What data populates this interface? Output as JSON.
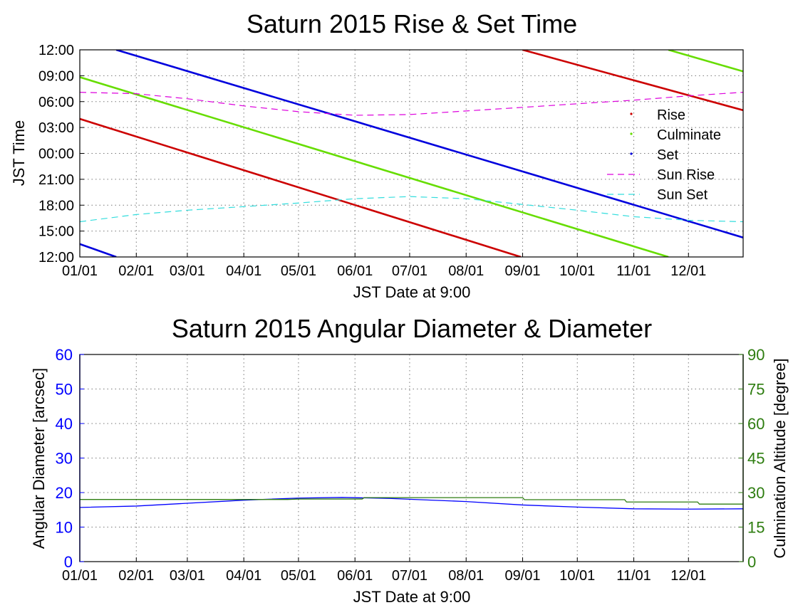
{
  "chart_data": [
    {
      "type": "scatter",
      "title": "Saturn 2015 Rise & Set Time",
      "xlabel": "JST Date at 9:00",
      "ylabel": "JST Time",
      "x_tick_labels": [
        "01/01",
        "02/01",
        "03/01",
        "04/01",
        "05/01",
        "06/01",
        "07/01",
        "08/01",
        "09/01",
        "10/01",
        "11/01",
        "12/01"
      ],
      "y_tick_labels": [
        "12:00",
        "15:00",
        "18:00",
        "21:00",
        "00:00",
        "03:00",
        "06:00",
        "09:00",
        "12:00"
      ],
      "grid": true,
      "legend": "right",
      "series": [
        {
          "name": "Rise",
          "color": "#cc0000",
          "style": "dots",
          "segments": [
            {
              "x": [
                "2015-01-01",
                "2015-08-31"
              ],
              "y": [
                "04:00",
                "12:00"
              ]
            },
            {
              "x": [
                "2015-09-01",
                "2015-12-31"
              ],
              "y": [
                "12:00",
                "05:00"
              ]
            }
          ]
        },
        {
          "name": "Culminate",
          "color": "#66dd00",
          "style": "dots",
          "segments": [
            {
              "x": [
                "2015-01-01",
                "2015-11-20"
              ],
              "y": [
                "08:50",
                "12:00"
              ]
            },
            {
              "x": [
                "2015-11-20",
                "2015-12-31"
              ],
              "y": [
                "12:00",
                "09:30"
              ]
            }
          ]
        },
        {
          "name": "Set",
          "color": "#0000dd",
          "style": "dots",
          "segments": [
            {
              "x": [
                "2015-01-01",
                "2015-01-21"
              ],
              "y": [
                "13:30",
                "12:00"
              ]
            },
            {
              "x": [
                "2015-01-21",
                "2015-12-31"
              ],
              "y": [
                "12:00",
                "14:15"
              ]
            }
          ]
        },
        {
          "name": "Sun Rise",
          "color": "#dd00dd",
          "style": "dashed",
          "points": [
            {
              "x": "2015-01-01",
              "y": "07:05"
            },
            {
              "x": "2015-02-01",
              "y": "06:55"
            },
            {
              "x": "2015-03-01",
              "y": "06:20"
            },
            {
              "x": "2015-04-01",
              "y": "05:30"
            },
            {
              "x": "2015-05-01",
              "y": "04:50"
            },
            {
              "x": "2015-06-01",
              "y": "04:25"
            },
            {
              "x": "2015-07-01",
              "y": "04:30"
            },
            {
              "x": "2015-08-01",
              "y": "04:55"
            },
            {
              "x": "2015-09-01",
              "y": "05:20"
            },
            {
              "x": "2015-10-01",
              "y": "05:45"
            },
            {
              "x": "2015-11-01",
              "y": "06:10"
            },
            {
              "x": "2015-12-01",
              "y": "06:40"
            },
            {
              "x": "2015-12-31",
              "y": "07:05"
            }
          ]
        },
        {
          "name": "Sun Set",
          "color": "#33dddd",
          "style": "dashed",
          "points": [
            {
              "x": "2015-01-01",
              "y": "16:05"
            },
            {
              "x": "2015-02-01",
              "y": "16:55"
            },
            {
              "x": "2015-03-01",
              "y": "17:25"
            },
            {
              "x": "2015-04-01",
              "y": "17:50"
            },
            {
              "x": "2015-05-01",
              "y": "18:15"
            },
            {
              "x": "2015-06-01",
              "y": "18:45"
            },
            {
              "x": "2015-07-01",
              "y": "19:00"
            },
            {
              "x": "2015-08-01",
              "y": "18:45"
            },
            {
              "x": "2015-09-01",
              "y": "18:05"
            },
            {
              "x": "2015-10-01",
              "y": "17:25"
            },
            {
              "x": "2015-11-01",
              "y": "16:40"
            },
            {
              "x": "2015-12-01",
              "y": "16:15"
            },
            {
              "x": "2015-12-31",
              "y": "16:05"
            }
          ]
        }
      ]
    },
    {
      "type": "line",
      "title": "Saturn 2015 Angular Diameter & Diameter",
      "xlabel": "JST Date at 9:00",
      "ylabel": "Angular Diameter [arcsec]",
      "y2label": "Culmination Altitude [degree]",
      "x_tick_labels": [
        "01/01",
        "02/01",
        "03/01",
        "04/01",
        "05/01",
        "06/01",
        "07/01",
        "08/01",
        "09/01",
        "10/01",
        "11/01",
        "12/01"
      ],
      "ylim": [
        0,
        60
      ],
      "y_ticks": [
        0,
        10,
        20,
        30,
        40,
        50,
        60
      ],
      "y2lim": [
        0,
        90
      ],
      "y2_ticks": [
        0,
        15,
        30,
        45,
        60,
        75,
        90
      ],
      "y_color": "#0000ff",
      "y2_color": "#2e7d10",
      "grid": true,
      "series": [
        {
          "name": "Angular Diameter",
          "axis": "left",
          "color": "#0000ff",
          "points": [
            {
              "x": "2015-01-01",
              "y": 15.7
            },
            {
              "x": "2015-02-01",
              "y": 16.1
            },
            {
              "x": "2015-03-01",
              "y": 16.9
            },
            {
              "x": "2015-04-01",
              "y": 17.8
            },
            {
              "x": "2015-05-01",
              "y": 18.4
            },
            {
              "x": "2015-05-25",
              "y": 18.6
            },
            {
              "x": "2015-06-20",
              "y": 18.3
            },
            {
              "x": "2015-08-01",
              "y": 17.4
            },
            {
              "x": "2015-09-01",
              "y": 16.4
            },
            {
              "x": "2015-10-01",
              "y": 15.8
            },
            {
              "x": "2015-11-01",
              "y": 15.3
            },
            {
              "x": "2015-12-01",
              "y": 15.2
            },
            {
              "x": "2015-12-31",
              "y": 15.3
            }
          ]
        },
        {
          "name": "Culmination Altitude",
          "axis": "right",
          "color": "#2e7d10",
          "style": "steps",
          "points": [
            {
              "x": "2015-01-01",
              "y": 27.0
            },
            {
              "x": "2015-04-25",
              "y": 27.0
            },
            {
              "x": "2015-05-01",
              "y": 27.2
            },
            {
              "x": "2015-06-05",
              "y": 27.2
            },
            {
              "x": "2015-06-06",
              "y": 27.8
            },
            {
              "x": "2015-09-01",
              "y": 27.8
            },
            {
              "x": "2015-09-02",
              "y": 26.9
            },
            {
              "x": "2015-10-27",
              "y": 26.9
            },
            {
              "x": "2015-10-28",
              "y": 25.9
            },
            {
              "x": "2015-12-06",
              "y": 25.9
            },
            {
              "x": "2015-12-07",
              "y": 25.0
            },
            {
              "x": "2015-12-31",
              "y": 25.0
            }
          ]
        }
      ]
    }
  ]
}
